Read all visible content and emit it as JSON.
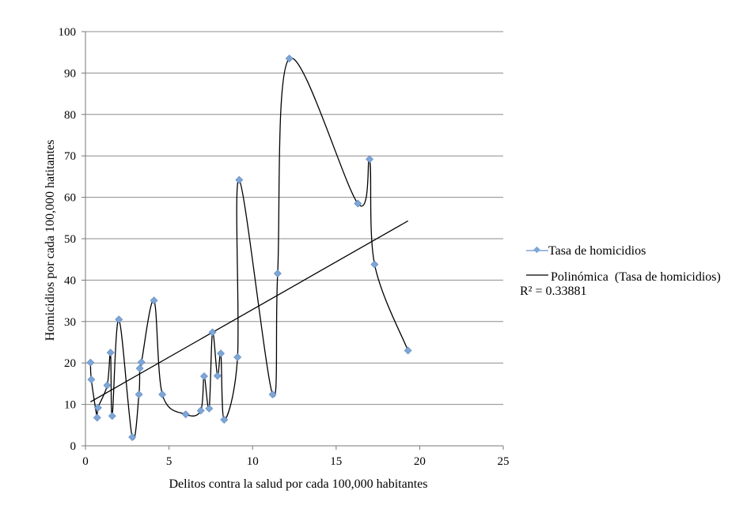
{
  "chart_data": {
    "type": "scatter",
    "title": "",
    "xlabel": "Delitos contra la salud por cada 100,000 habitantes",
    "ylabel": "Homicidios por cada  100,000 hatitantes",
    "xlim": [
      0,
      25
    ],
    "ylim": [
      0,
      100
    ],
    "xticks": [
      0,
      5,
      10,
      15,
      20,
      25
    ],
    "yticks": [
      0,
      10,
      20,
      30,
      40,
      50,
      60,
      70,
      80,
      90,
      100
    ],
    "grid": "horizontal",
    "legend_position": "right",
    "series": [
      {
        "name": "Tasa de homicidios",
        "color": "#7ea6d6",
        "line_color": "#000000",
        "points": [
          {
            "x": 0.3,
            "y": 20.1
          },
          {
            "x": 0.35,
            "y": 16.0
          },
          {
            "x": 0.7,
            "y": 6.8
          },
          {
            "x": 0.75,
            "y": 9.2
          },
          {
            "x": 1.3,
            "y": 14.6
          },
          {
            "x": 1.5,
            "y": 22.5
          },
          {
            "x": 1.6,
            "y": 7.2
          },
          {
            "x": 2.0,
            "y": 30.5
          },
          {
            "x": 2.8,
            "y": 2.1
          },
          {
            "x": 3.2,
            "y": 12.4
          },
          {
            "x": 3.25,
            "y": 18.7
          },
          {
            "x": 3.35,
            "y": 20.2
          },
          {
            "x": 4.1,
            "y": 35.1
          },
          {
            "x": 4.6,
            "y": 12.4
          },
          {
            "x": 6.0,
            "y": 7.6
          },
          {
            "x": 6.9,
            "y": 8.5
          },
          {
            "x": 7.1,
            "y": 16.8
          },
          {
            "x": 7.4,
            "y": 9.0
          },
          {
            "x": 7.6,
            "y": 27.4
          },
          {
            "x": 7.9,
            "y": 16.9
          },
          {
            "x": 8.1,
            "y": 22.3
          },
          {
            "x": 8.3,
            "y": 6.3
          },
          {
            "x": 9.1,
            "y": 21.4
          },
          {
            "x": 9.2,
            "y": 64.2
          },
          {
            "x": 11.2,
            "y": 12.4
          },
          {
            "x": 11.5,
            "y": 41.6
          },
          {
            "x": 12.2,
            "y": 93.5
          },
          {
            "x": 16.3,
            "y": 58.5
          },
          {
            "x": 17.0,
            "y": 69.2
          },
          {
            "x": 17.3,
            "y": 43.8
          },
          {
            "x": 19.3,
            "y": 23.0
          }
        ]
      }
    ],
    "trendline": {
      "name": "Polinómica  (Tasa de homicidios)",
      "x_range": [
        0.3,
        19.3
      ],
      "y_range": [
        10.6,
        54.3
      ],
      "r_squared_label": "R² = 0.33881"
    }
  }
}
